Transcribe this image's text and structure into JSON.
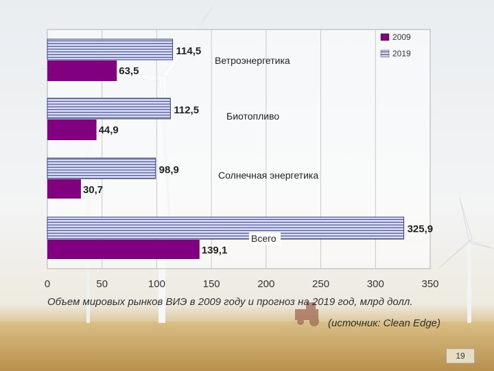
{
  "colors": {
    "series_2009": "#800080",
    "series_2019_fill": "#cfd4f2",
    "series_2019_stripe": "#4a4f8c",
    "plot_border": "#b0b0b0"
  },
  "chart_data": {
    "type": "bar",
    "orientation": "horizontal",
    "categories": [
      "Ветроэнергетика",
      "Биотопливо",
      "Солнечная энергетика",
      "Всего"
    ],
    "series": [
      {
        "name": "2019",
        "values": [
          114.5,
          112.5,
          98.9,
          325.9
        ],
        "value_labels": [
          "114,5",
          "112,5",
          "98,9",
          "325,9"
        ]
      },
      {
        "name": "2009",
        "values": [
          63.5,
          44.9,
          30.7,
          139.1
        ],
        "value_labels": [
          "63,5",
          "44,9",
          "30,7",
          "139,1"
        ]
      }
    ],
    "xlim": [
      0,
      350
    ],
    "x_ticks": [
      "0",
      "50",
      "100",
      "150",
      "200",
      "250",
      "300",
      "350"
    ],
    "legend": {
      "entries": [
        "2009",
        "2019"
      ],
      "position": "top-right"
    },
    "grid": "vertical"
  },
  "caption": {
    "main": "Объем мировых рынков ВИЭ в 2009 году и прогноз на 2019 год, млрд долл.",
    "source": "(источник: Clean Edge)"
  },
  "page_number": "19",
  "background": {
    "icons": [
      "wind-turbine-icon",
      "tractor-icon",
      "wheat-field"
    ]
  }
}
